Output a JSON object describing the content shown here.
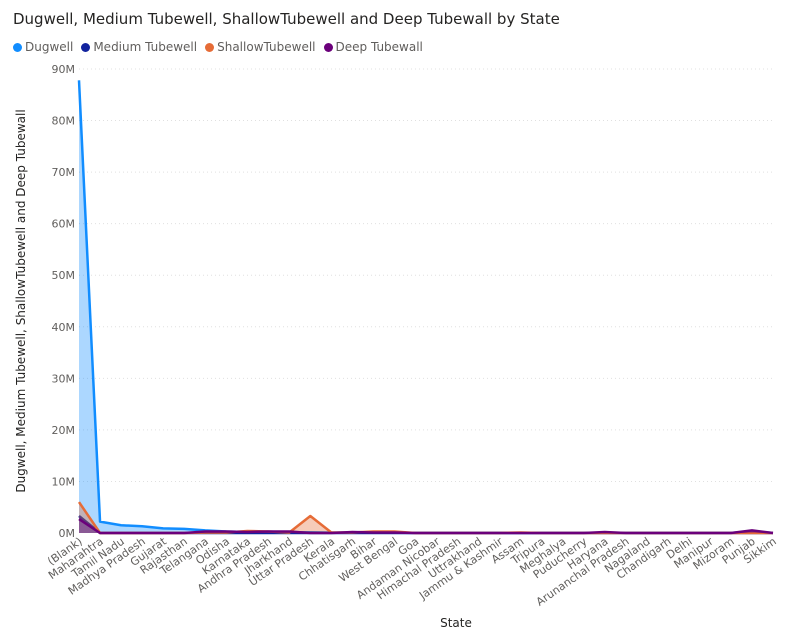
{
  "chart_data": {
    "type": "area",
    "title": "Dugwell, Medium Tubewell, ShallowTubewell and Deep Tubewall by State",
    "xlabel": "State",
    "ylabel": "Dugwell, Medium Tubewell, ShallowTubewell and Deep Tubewall",
    "ylim": [
      0,
      90000000
    ],
    "yticks": [
      0,
      10000000,
      20000000,
      30000000,
      40000000,
      50000000,
      60000000,
      70000000,
      80000000,
      90000000
    ],
    "ytick_labels": [
      "0M",
      "10M",
      "20M",
      "30M",
      "40M",
      "50M",
      "60M",
      "70M",
      "80M",
      "90M"
    ],
    "grid": true,
    "legend_position": "top-left",
    "categories": [
      "(Blank)",
      "Maharahtra",
      "Tamil Nadu",
      "Madhya Pradesh",
      "Gujarat",
      "Rajasthan",
      "Telangana",
      "Odisha",
      "Karnataka",
      "Andhra Pradesh",
      "Jharkhand",
      "Uttar Pradesh",
      "Kerala",
      "Chhatisgarh",
      "Bihar",
      "West Bengal",
      "Goa",
      "Andaman Nicobar",
      "Himachal Pradesh",
      "Uttrakhand",
      "Jammu & Kashmir",
      "Assam",
      "Tripura",
      "Meghalya",
      "Puducherry",
      "Haryana",
      "Arunanchal Pradesh",
      "Nagaland",
      "Chandigarh",
      "Delhi",
      "Manipur",
      "Mizoram",
      "Punjab",
      "Sikkim"
    ],
    "series": [
      {
        "name": "Dugwell",
        "color": "#118dff",
        "values": [
          87800000,
          2200000,
          1500000,
          1300000,
          900000,
          800000,
          500000,
          300000,
          200000,
          250000,
          150000,
          150000,
          80000,
          70000,
          60000,
          60000,
          30000,
          20000,
          20000,
          20000,
          20000,
          20000,
          20000,
          20000,
          20000,
          20000,
          20000,
          20000,
          20000,
          20000,
          20000,
          20000,
          300000,
          20000
        ]
      },
      {
        "name": "Medium Tubewell",
        "color": "#12239e",
        "values": [
          3300000,
          0,
          0,
          0,
          0,
          0,
          0,
          0,
          0,
          0,
          0,
          0,
          0,
          0,
          0,
          0,
          0,
          0,
          0,
          0,
          0,
          0,
          0,
          0,
          0,
          0,
          0,
          0,
          0,
          0,
          0,
          0,
          0,
          0
        ]
      },
      {
        "name": "ShallowTubewell",
        "color": "#e66c37",
        "values": [
          6000000,
          0,
          0,
          0,
          0,
          0,
          100000,
          100000,
          400000,
          300000,
          100000,
          3300000,
          100000,
          100000,
          300000,
          300000,
          0,
          0,
          0,
          0,
          0,
          100000,
          0,
          0,
          0,
          0,
          0,
          0,
          0,
          0,
          0,
          0,
          0,
          0
        ]
      },
      {
        "name": "Deep Tubewall",
        "color": "#6b007b",
        "values": [
          2700000,
          0,
          0,
          0,
          0,
          0,
          300000,
          300000,
          200000,
          300000,
          300000,
          0,
          0,
          200000,
          100000,
          100000,
          0,
          0,
          0,
          0,
          0,
          0,
          0,
          0,
          0,
          200000,
          0,
          0,
          0,
          0,
          0,
          0,
          500000,
          0
        ]
      }
    ]
  }
}
